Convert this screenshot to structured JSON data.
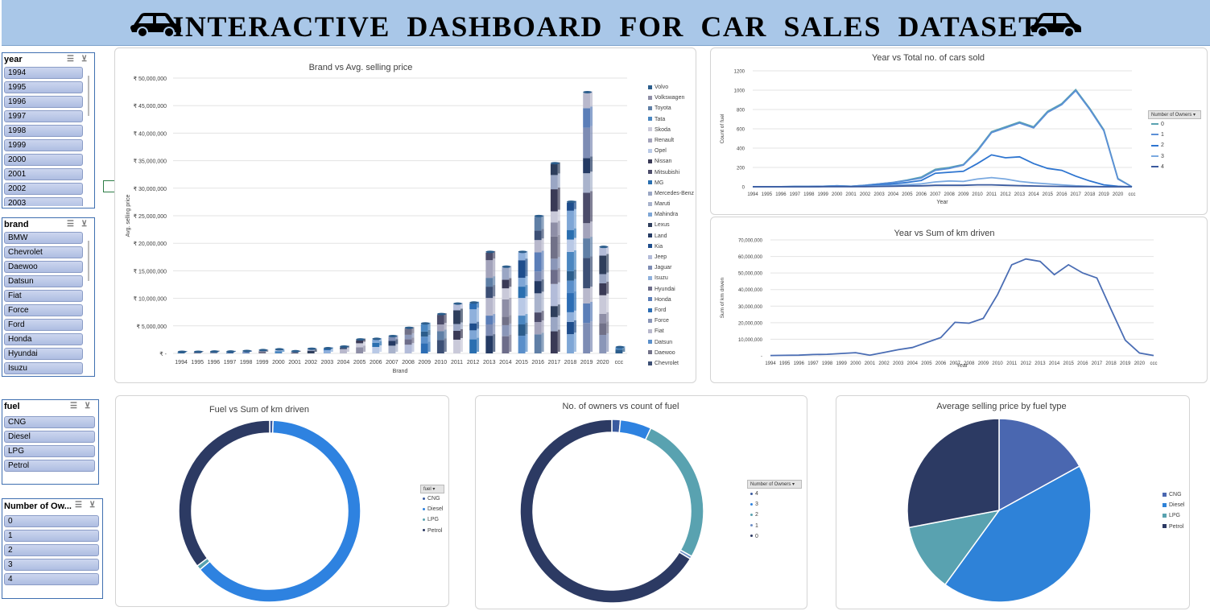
{
  "header": {
    "title": "INTERACTIVE  DASHBOARD  FOR  CAR SALES  DATASET"
  },
  "slicers": {
    "year": {
      "title": "year",
      "items": [
        "1994",
        "1995",
        "1996",
        "1997",
        "1998",
        "1999",
        "2000",
        "2001",
        "2002",
        "2003"
      ]
    },
    "brand": {
      "title": "brand",
      "items": [
        "BMW",
        "Chevrolet",
        "Daewoo",
        "Datsun",
        "Fiat",
        "Force",
        "Ford",
        "Honda",
        "Hyundai",
        "Isuzu"
      ]
    },
    "fuel": {
      "title": "fuel",
      "items": [
        "CNG",
        "Diesel",
        "LPG",
        "Petrol"
      ]
    },
    "owners": {
      "title": "Number of Ow...",
      "items": [
        "0",
        "1",
        "2",
        "3",
        "4"
      ]
    }
  },
  "chart_data": [
    {
      "type": "bar",
      "stacked": true,
      "title": "Brand vs Avg. selling price",
      "xlabel": "Brand",
      "ylabel": "Avg. selling price",
      "categories": [
        "1994",
        "1995",
        "1996",
        "1997",
        "1998",
        "1999",
        "2000",
        "2001",
        "2002",
        "2003",
        "2004",
        "2005",
        "2006",
        "2007",
        "2008",
        "2009",
        "2010",
        "2011",
        "2012",
        "2013",
        "2014",
        "2015",
        "2016",
        "2017",
        "2018",
        "2019",
        "2020",
        "ccc"
      ],
      "totals": [
        150000,
        150000,
        200000,
        200000,
        300000,
        450000,
        600000,
        250000,
        700000,
        800000,
        1100000,
        2400000,
        2500000,
        3000000,
        4500000,
        5300000,
        7000000,
        8900000,
        9100000,
        18300000,
        15600000,
        18300000,
        24800000,
        34400000,
        27400000,
        47300000,
        19200000,
        1000000
      ],
      "ylim": [
        0,
        50000000
      ],
      "yticks": [
        "₹ -",
        "₹ 5,000,000",
        "₹ 10,000,000",
        "₹ 15,000,000",
        "₹ 20,000,000",
        "₹ 25,000,000",
        "₹ 30,000,000",
        "₹ 35,000,000",
        "₹ 40,000,000",
        "₹ 45,000,000",
        "₹ 50,000,000"
      ],
      "legend": [
        "Volvo",
        "Volkswagen",
        "Toyota",
        "Tata",
        "Skoda",
        "Renault",
        "Opel",
        "Nissan",
        "Mitsubishi",
        "MG",
        "Mercedes-Benz",
        "Maruti",
        "Mahindra",
        "Lexus",
        "Land",
        "Kia",
        "Jeep",
        "Jaguar",
        "Isuzu",
        "Hyundai",
        "Honda",
        "Ford",
        "Force",
        "Fiat",
        "Datsun",
        "Daewoo",
        "Chevrolet"
      ],
      "legend_colors": [
        "#2b5d8c",
        "#8e8ea6",
        "#5f7fa6",
        "#4a86c0",
        "#c9c9d9",
        "#a3a3bb",
        "#b9c9e6",
        "#3a3a56",
        "#4c4c6a",
        "#2a6fb0",
        "#9aa6c4",
        "#a9b3cc",
        "#7ea6d6",
        "#2e3e5c",
        "#243a63",
        "#1e4d8c",
        "#b3bcd9",
        "#7d8cb4",
        "#8fb0dc",
        "#6d6d8a",
        "#5b7eb8",
        "#2c6db4",
        "#8a96b8",
        "#b8b8cc",
        "#5a8fca",
        "#717188",
        "#3c4f75"
      ]
    },
    {
      "type": "line",
      "title": "Year vs Total no. of cars sold",
      "xlabel": "Year",
      "ylabel": "Count of fuel",
      "ylim": [
        0,
        1200
      ],
      "yticks": [
        "0",
        "200",
        "400",
        "600",
        "800",
        "1000",
        "1200"
      ],
      "x": [
        "1994",
        "1995",
        "1996",
        "1997",
        "1998",
        "1999",
        "2000",
        "2001",
        "2002",
        "2003",
        "2004",
        "2005",
        "2006",
        "2007",
        "2008",
        "2009",
        "2010",
        "2011",
        "2012",
        "2013",
        "2014",
        "2015",
        "2016",
        "2017",
        "2018",
        "2019",
        "2020",
        "ccc"
      ],
      "legend_title": "Number of Owners",
      "series": [
        {
          "name": "0",
          "color": "#59a2b0",
          "values": [
            1,
            1,
            1,
            3,
            3,
            5,
            10,
            5,
            15,
            30,
            45,
            70,
            100,
            180,
            200,
            230,
            380,
            570,
            620,
            670,
            620,
            780,
            860,
            1005,
            810,
            590,
            85,
            0
          ]
        },
        {
          "name": "1",
          "color": "#5b8fd6",
          "values": [
            1,
            1,
            1,
            3,
            3,
            5,
            10,
            5,
            15,
            30,
            45,
            65,
            90,
            170,
            190,
            225,
            370,
            560,
            610,
            660,
            610,
            770,
            850,
            995,
            800,
            580,
            80,
            0
          ]
        },
        {
          "name": "2",
          "color": "#2e75d0",
          "values": [
            0,
            0,
            0,
            2,
            2,
            3,
            6,
            3,
            10,
            20,
            30,
            45,
            65,
            140,
            150,
            160,
            240,
            330,
            300,
            310,
            240,
            190,
            170,
            110,
            60,
            20,
            5,
            0
          ]
        },
        {
          "name": "3",
          "color": "#7aa9e0",
          "values": [
            0,
            0,
            0,
            1,
            1,
            2,
            3,
            2,
            5,
            10,
            15,
            22,
            30,
            50,
            60,
            55,
            80,
            95,
            80,
            55,
            40,
            30,
            20,
            10,
            5,
            2,
            0,
            0
          ]
        },
        {
          "name": "4",
          "color": "#3a5a9e",
          "values": [
            0,
            0,
            0,
            0,
            0,
            1,
            1,
            1,
            2,
            3,
            5,
            8,
            10,
            15,
            15,
            15,
            20,
            20,
            15,
            12,
            8,
            5,
            3,
            2,
            1,
            0,
            0,
            0
          ]
        }
      ]
    },
    {
      "type": "line",
      "title": "Year vs Sum of km driven",
      "xlabel": "Year",
      "ylabel": "Sum of km driven",
      "ylim": [
        0,
        70000000
      ],
      "yticks": [
        "-",
        "10,000,000",
        "20,000,000",
        "30,000,000",
        "40,000,000",
        "50,000,000",
        "60,000,000",
        "70,000,000"
      ],
      "x": [
        "1994",
        "1995",
        "1996",
        "1997",
        "1998",
        "1999",
        "2000",
        "2001",
        "2002",
        "2003",
        "2004",
        "2005",
        "2006",
        "2007",
        "2008",
        "2009",
        "2010",
        "2011",
        "2012",
        "2013",
        "2014",
        "2015",
        "2016",
        "2017",
        "2018",
        "2019",
        "2020",
        "ccc"
      ],
      "series": [
        {
          "name": "Total",
          "color": "#4a6db4",
          "values": [
            200000,
            300000,
            400000,
            800000,
            900000,
            1400000,
            1900000,
            400000,
            2000000,
            3700000,
            5000000,
            8000000,
            11000000,
            20200000,
            19700000,
            22600000,
            37000000,
            55000000,
            58500000,
            57000000,
            49000000,
            55000000,
            50000000,
            47000000,
            28000000,
            9500000,
            1700000,
            200000
          ]
        }
      ]
    },
    {
      "type": "pie",
      "donut": true,
      "title": "Fuel vs Sum of km driven",
      "legend_title": "fuel",
      "labels": [
        "CNG",
        "Diesel",
        "LPG",
        "Petrol"
      ],
      "values": [
        0.6,
        63.3,
        0.8,
        35.3
      ],
      "colors": [
        "#3a5a9e",
        "#2e82e0",
        "#59a2b0",
        "#2c3a63"
      ]
    },
    {
      "type": "pie",
      "donut": true,
      "title": "No. of owners vs count of fuel",
      "legend_title": "Number of Owners",
      "labels": [
        "4",
        "3",
        "2",
        "1",
        "0"
      ],
      "values": [
        1.5,
        5.5,
        26.2,
        0.5,
        66.3
      ],
      "colors": [
        "#3a5a9e",
        "#2e82e0",
        "#59a2b0",
        "#6d8ec6",
        "#2c3a63"
      ]
    },
    {
      "type": "pie",
      "title": "Average selling price by fuel type",
      "labels": [
        "CNG",
        "Diesel",
        "LPG",
        "Petrol"
      ],
      "values": [
        17.0,
        43.0,
        12.0,
        28.0
      ],
      "colors": [
        "#4a67b0",
        "#2e82d8",
        "#59a2b0",
        "#2c3a63"
      ]
    }
  ]
}
